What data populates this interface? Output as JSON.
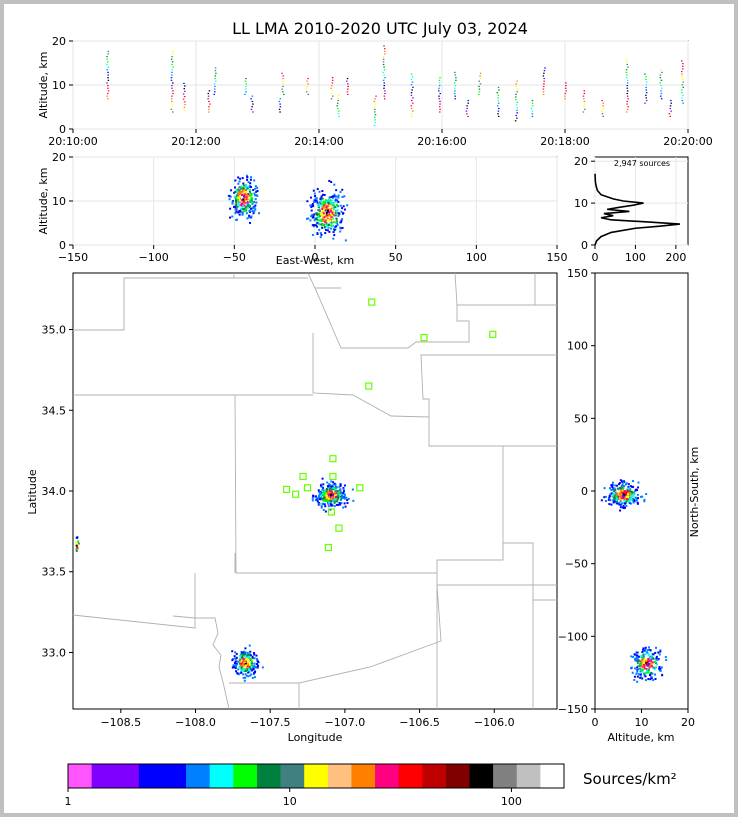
{
  "title": "LL LMA 2010-2020 UTC July 03, 2024",
  "chart_data": [
    {
      "id": "time-height",
      "type": "scatter",
      "xlabel": "",
      "ylabel": "Altitude, km",
      "xticks": [
        "20:10:00",
        "20:12:00",
        "20:14:00",
        "20:16:00",
        "20:18:00",
        "20:20:00"
      ],
      "xlim": [
        0,
        10
      ],
      "ylim": [
        0,
        20
      ],
      "yticks": [
        0,
        10,
        20
      ],
      "grid": true,
      "columns": [
        {
          "t": 0.55,
          "lo": 7,
          "hi": 18
        },
        {
          "t": 1.6,
          "lo": 4,
          "hi": 18
        },
        {
          "t": 1.8,
          "lo": 4.5,
          "hi": 11
        },
        {
          "t": 2.2,
          "lo": 4,
          "hi": 9
        },
        {
          "t": 2.3,
          "lo": 8,
          "hi": 14
        },
        {
          "t": 2.8,
          "lo": 8,
          "hi": 12
        },
        {
          "t": 2.9,
          "lo": 4,
          "hi": 8
        },
        {
          "t": 3.35,
          "lo": 4,
          "hi": 7
        },
        {
          "t": 3.4,
          "lo": 8,
          "hi": 13
        },
        {
          "t": 3.8,
          "lo": 8,
          "hi": 12
        },
        {
          "t": 4.2,
          "lo": 7,
          "hi": 12
        },
        {
          "t": 4.3,
          "lo": 3,
          "hi": 8
        },
        {
          "t": 4.45,
          "lo": 8,
          "hi": 12
        },
        {
          "t": 4.9,
          "lo": 1,
          "hi": 8
        },
        {
          "t": 5.05,
          "lo": 7,
          "hi": 19
        },
        {
          "t": 5.5,
          "lo": 3,
          "hi": 13
        },
        {
          "t": 5.95,
          "lo": 4,
          "hi": 12
        },
        {
          "t": 6.2,
          "lo": 7,
          "hi": 13
        },
        {
          "t": 6.4,
          "lo": 3,
          "hi": 7
        },
        {
          "t": 6.6,
          "lo": 8,
          "hi": 13
        },
        {
          "t": 6.9,
          "lo": 3,
          "hi": 10
        },
        {
          "t": 7.2,
          "lo": 2,
          "hi": 11
        },
        {
          "t": 7.45,
          "lo": 3,
          "hi": 7
        },
        {
          "t": 7.65,
          "lo": 8,
          "hi": 14
        },
        {
          "t": 8.0,
          "lo": 7,
          "hi": 11
        },
        {
          "t": 8.3,
          "lo": 4,
          "hi": 9
        },
        {
          "t": 8.6,
          "lo": 3,
          "hi": 7
        },
        {
          "t": 9.0,
          "lo": 4,
          "hi": 16
        },
        {
          "t": 9.3,
          "lo": 6,
          "hi": 13
        },
        {
          "t": 9.55,
          "lo": 7,
          "hi": 14
        },
        {
          "t": 9.7,
          "lo": 3,
          "hi": 7
        },
        {
          "t": 9.9,
          "lo": 6,
          "hi": 16
        }
      ]
    },
    {
      "id": "ew-height",
      "type": "scatter",
      "xlabel": "East-West, km",
      "ylabel": "Altitude, km",
      "xlim": [
        -150,
        150
      ],
      "xticks": [
        -150,
        -100,
        -50,
        0,
        50,
        100,
        150
      ],
      "ylim": [
        0,
        20
      ],
      "yticks": [
        0,
        10,
        20
      ],
      "clusters": [
        {
          "x": -45,
          "y": 11,
          "sx": 4,
          "sy": 2.2,
          "n": 240
        },
        {
          "x": 7,
          "y": 7.5,
          "sx": 5,
          "sy": 2.5,
          "n": 320
        }
      ]
    },
    {
      "id": "altitude-histogram",
      "type": "line",
      "annotation": "2,947 sources",
      "xlim": [
        0,
        230
      ],
      "xticks": [
        0,
        100,
        200
      ],
      "ylim": [
        0,
        21
      ],
      "yticks": [
        0,
        10,
        20
      ],
      "profile": [
        {
          "alt": 0,
          "count": 0
        },
        {
          "alt": 1,
          "count": 4
        },
        {
          "alt": 2,
          "count": 15
        },
        {
          "alt": 3,
          "count": 40
        },
        {
          "alt": 4,
          "count": 100
        },
        {
          "alt": 4.5,
          "count": 160
        },
        {
          "alt": 5,
          "count": 210
        },
        {
          "alt": 5.5,
          "count": 130
        },
        {
          "alt": 6,
          "count": 40
        },
        {
          "alt": 6.5,
          "count": 15
        },
        {
          "alt": 7,
          "count": 45
        },
        {
          "alt": 7.5,
          "count": 22
        },
        {
          "alt": 8,
          "count": 85
        },
        {
          "alt": 8.5,
          "count": 30
        },
        {
          "alt": 9,
          "count": 60
        },
        {
          "alt": 9.5,
          "count": 95
        },
        {
          "alt": 10,
          "count": 120
        },
        {
          "alt": 10.5,
          "count": 70
        },
        {
          "alt": 11,
          "count": 45
        },
        {
          "alt": 12,
          "count": 15
        },
        {
          "alt": 13,
          "count": 6
        },
        {
          "alt": 14,
          "count": 3
        },
        {
          "alt": 15,
          "count": 1
        },
        {
          "alt": 17,
          "count": 0
        }
      ]
    },
    {
      "id": "plan-view",
      "type": "scatter",
      "xlabel": "Longitude",
      "ylabel": "Latitude",
      "xlim": [
        -108.82,
        -105.58
      ],
      "ylim": [
        32.65,
        35.35
      ],
      "xticks": [
        -108.5,
        -108.0,
        -107.5,
        -107.0,
        -106.5,
        -106.0
      ],
      "xtick_labels": [
        "−108.5",
        "−108.0",
        "−107.5",
        "−107.0",
        "−106.5",
        "−106.0"
      ],
      "yticks": [
        33.0,
        33.5,
        34.0,
        34.5,
        35.0
      ],
      "yticklabels": [
        "33.0",
        "33.5",
        "34.0",
        "34.5",
        "35.0"
      ],
      "stations": [
        {
          "lon": -106.82,
          "lat": 35.17
        },
        {
          "lon": -106.47,
          "lat": 34.95
        },
        {
          "lon": -106.01,
          "lat": 34.97
        },
        {
          "lon": -106.84,
          "lat": 34.65
        },
        {
          "lon": -107.08,
          "lat": 34.2
        },
        {
          "lon": -107.28,
          "lat": 34.09
        },
        {
          "lon": -107.08,
          "lat": 34.09
        },
        {
          "lon": -107.39,
          "lat": 34.01
        },
        {
          "lon": -107.25,
          "lat": 34.02
        },
        {
          "lon": -107.33,
          "lat": 33.98
        },
        {
          "lon": -106.9,
          "lat": 34.02
        },
        {
          "lon": -107.09,
          "lat": 33.87
        },
        {
          "lon": -107.04,
          "lat": 33.77
        },
        {
          "lon": -107.11,
          "lat": 33.65
        }
      ],
      "clusters": [
        {
          "lon": -107.1,
          "lat": 33.98,
          "slon": 0.05,
          "slat": 0.035,
          "n": 320
        },
        {
          "lon": -107.67,
          "lat": 32.94,
          "slon": 0.04,
          "slat": 0.04,
          "n": 220
        },
        {
          "lon": -108.8,
          "lat": 33.67,
          "slon": 0.01,
          "slat": 0.03,
          "n": 12
        }
      ]
    },
    {
      "id": "ns-height",
      "type": "scatter",
      "xlabel": "Altitude, km",
      "ylabel": "North-South, km",
      "xlim": [
        0,
        20
      ],
      "xticks": [
        0,
        10,
        20
      ],
      "ylim": [
        -150,
        150
      ],
      "yticks": [
        -150,
        -100,
        -50,
        0,
        50,
        100,
        150
      ],
      "yticklabels": [
        "−150",
        "−100",
        "−50",
        "0",
        "50",
        "100",
        "150"
      ],
      "clusters": [
        {
          "x": 6,
          "y": -2,
          "sx": 1.8,
          "sy": 4,
          "n": 260
        },
        {
          "x": 11,
          "y": -118,
          "sx": 1.5,
          "sy": 5,
          "n": 200
        }
      ]
    }
  ],
  "colorbar": {
    "label": "Sources/km²",
    "tick_labels": [
      "1",
      "10",
      "100"
    ],
    "colors": [
      "#ff55ff",
      "#8000ff",
      "#8000ff",
      "#0000ff",
      "#0000ff",
      "#0080ff",
      "#00ffff",
      "#00ff00",
      "#00803e",
      "#408080",
      "#ffff00",
      "#ffc080",
      "#ff8000",
      "#ff0080",
      "#ff0000",
      "#c00000",
      "#800000",
      "#000000",
      "#808080",
      "#c0c0c0",
      "#ffffff"
    ]
  }
}
